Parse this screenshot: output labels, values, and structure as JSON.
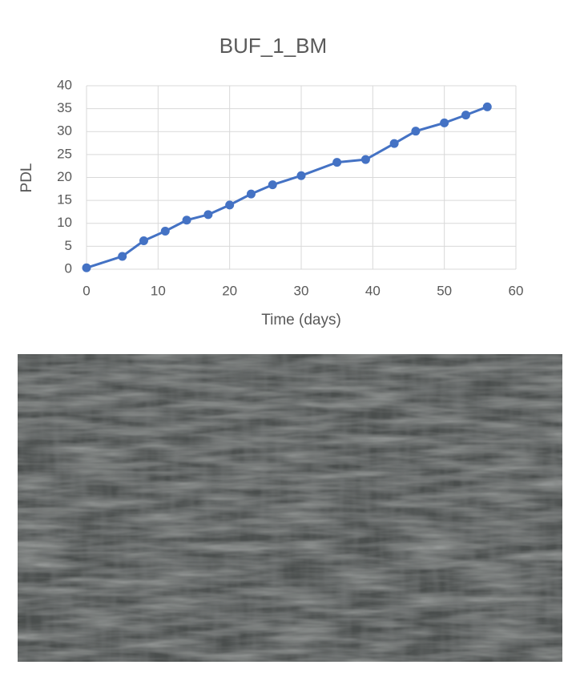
{
  "chart_data": {
    "type": "line",
    "title": "BUF_1_BM",
    "x_label": "Time (days)",
    "y_label": "PDL",
    "x": [
      0,
      5,
      8,
      11,
      14,
      17,
      20,
      23,
      26,
      30,
      35,
      39,
      43,
      46,
      50,
      53,
      56
    ],
    "values": [
      0.3,
      2.8,
      6.2,
      8.3,
      10.7,
      11.9,
      14.0,
      16.4,
      18.4,
      20.4,
      23.3,
      23.9,
      27.4,
      30.1,
      31.9,
      33.6,
      35.4
    ],
    "color": "#4472c4",
    "xlim": [
      0,
      60
    ],
    "xticks": [
      0,
      10,
      20,
      30,
      40,
      50,
      60
    ],
    "ylim": [
      0,
      40
    ],
    "yticks": [
      0,
      5,
      10,
      15,
      20,
      25,
      30,
      35,
      40
    ],
    "grid": true
  }
}
